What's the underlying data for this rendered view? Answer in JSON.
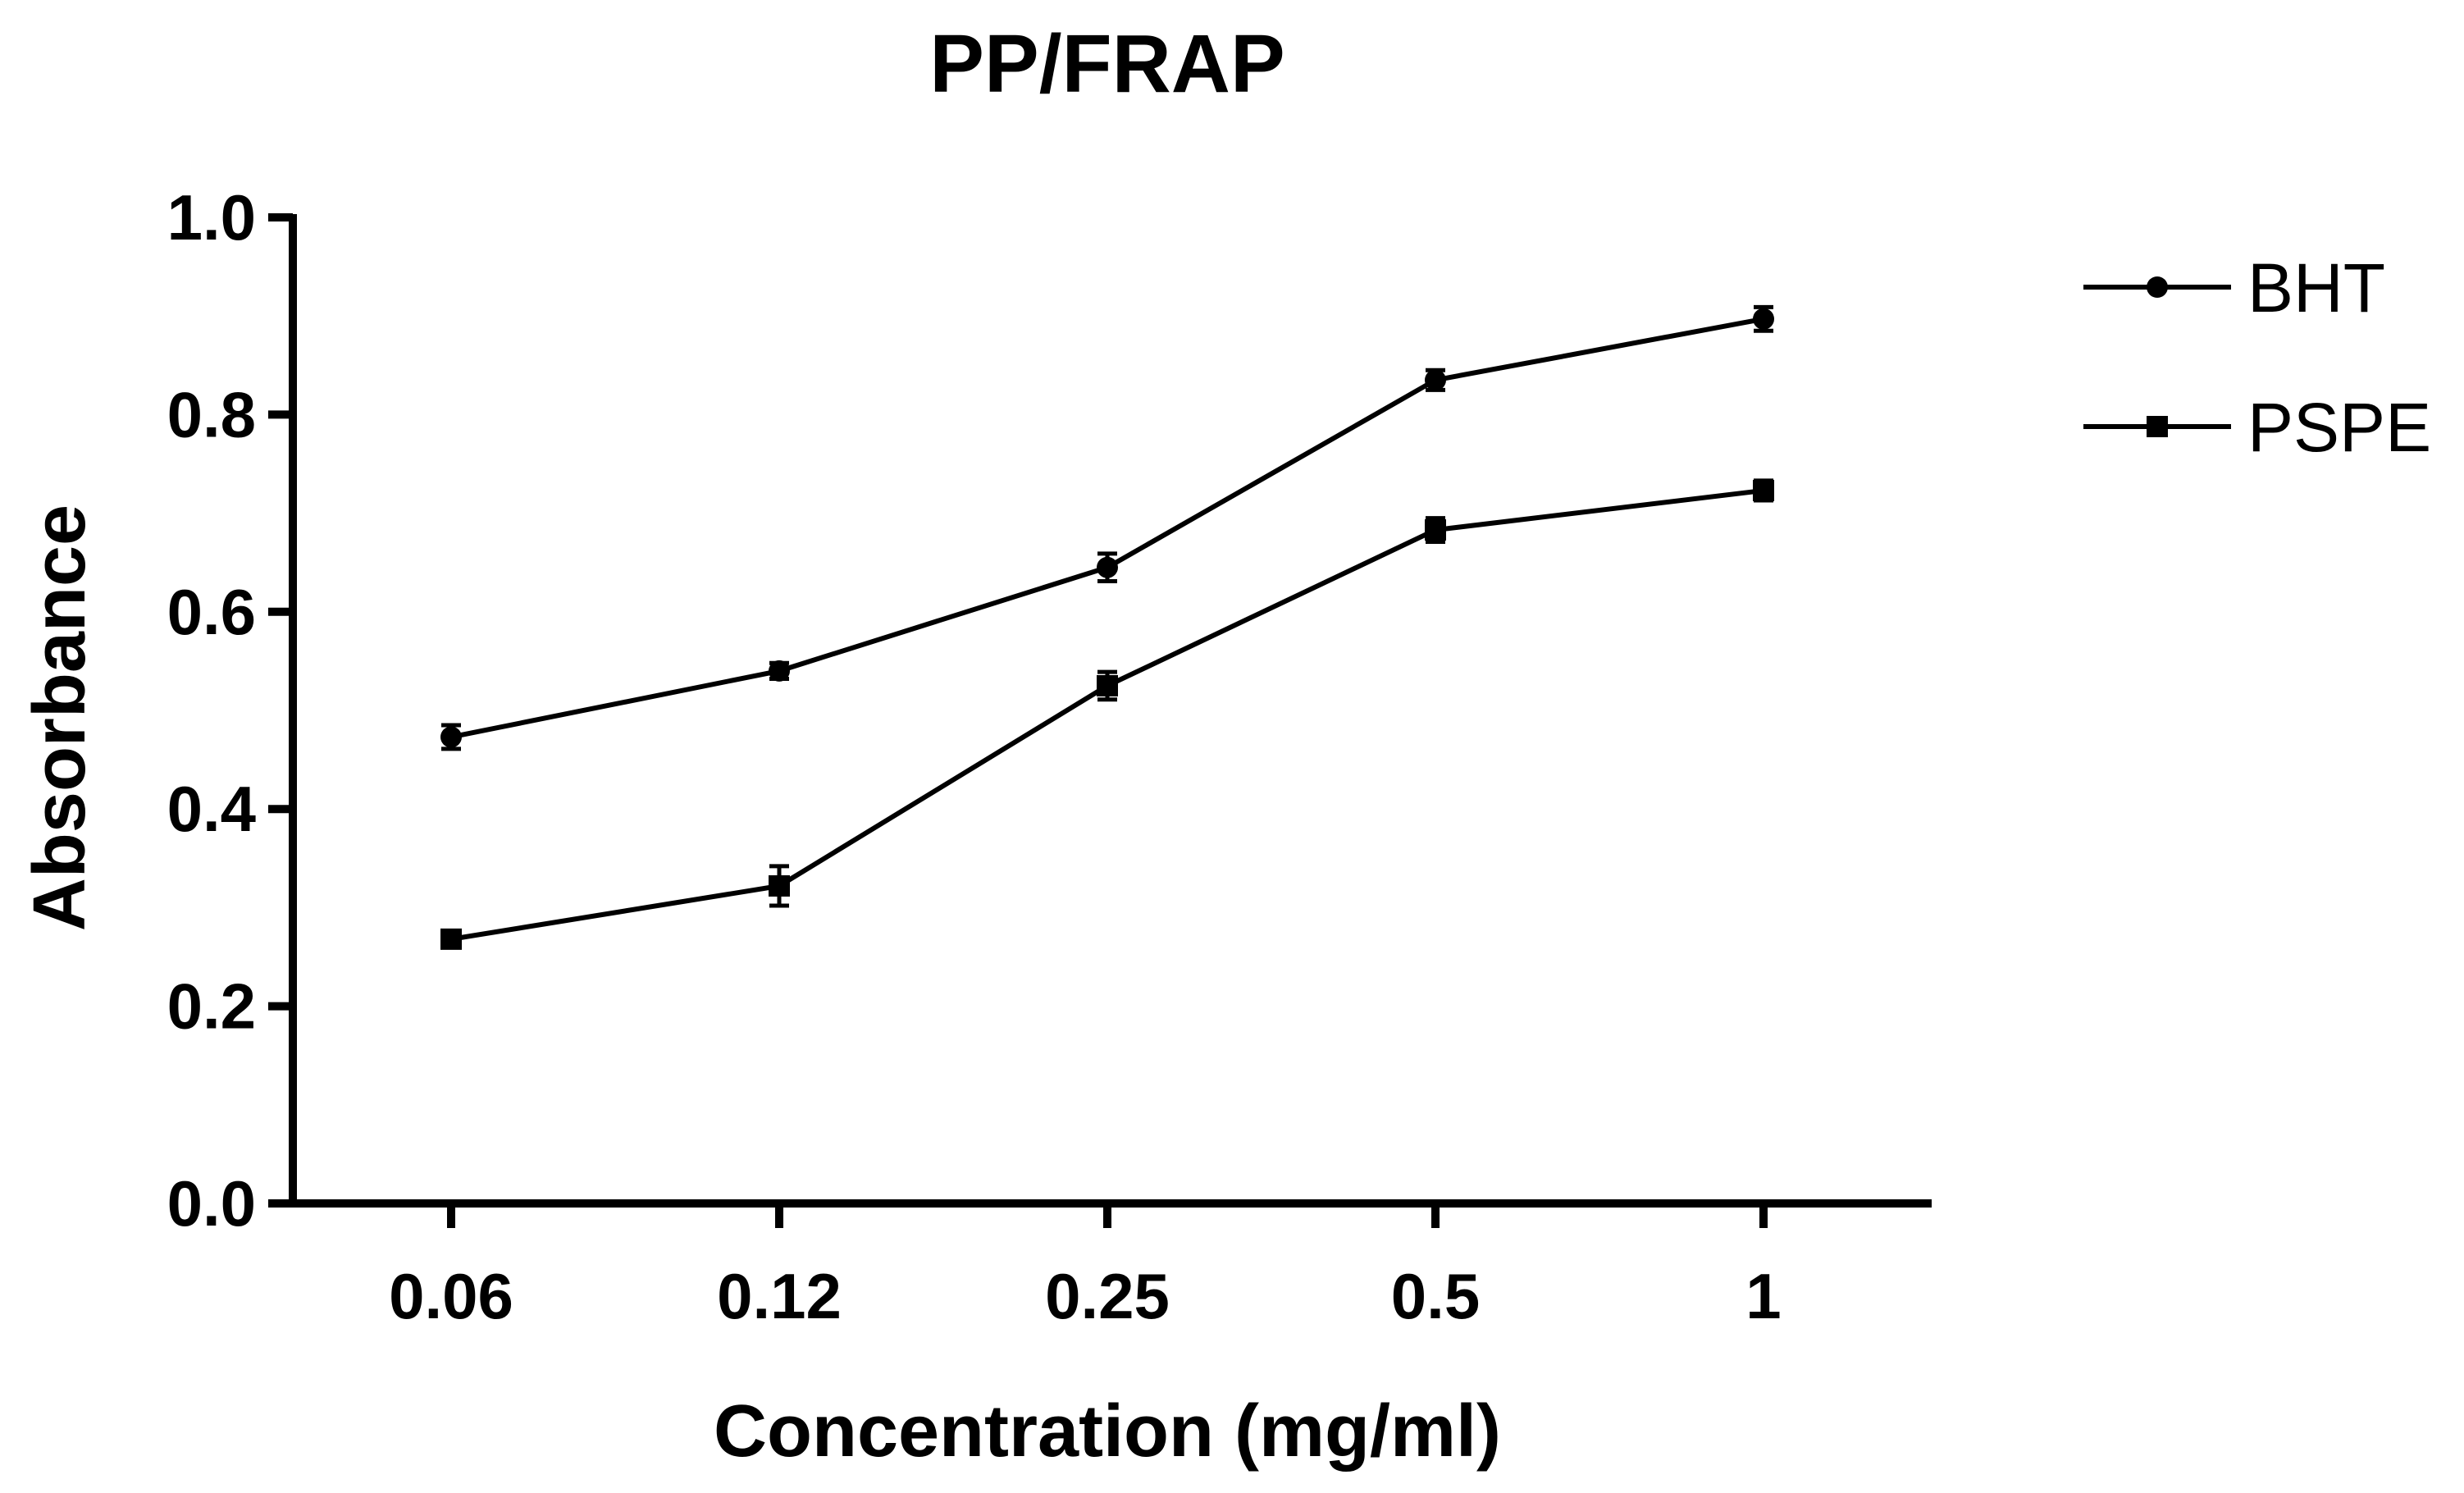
{
  "chart_data": {
    "type": "line",
    "title": "PP/FRAP",
    "xlabel": "Concentration (mg/ml)",
    "ylabel": "Absorbance",
    "categories": [
      "0.06",
      "0.12",
      "0.25",
      "0.5",
      "1"
    ],
    "ylim": [
      0,
      1.0
    ],
    "yticks": [
      "0.0",
      "0.2",
      "0.4",
      "0.6",
      "0.8",
      "1.0"
    ],
    "grid": false,
    "legend_position": "top-right",
    "series": [
      {
        "name": "BHT",
        "marker": "circle",
        "values": [
          0.473,
          0.54,
          0.645,
          0.835,
          0.897
        ],
        "errors": [
          0.012,
          0.008,
          0.014,
          0.01,
          0.012
        ]
      },
      {
        "name": "PSPE",
        "marker": "square",
        "values": [
          0.268,
          0.322,
          0.525,
          0.683,
          0.723
        ],
        "errors": [
          0.006,
          0.02,
          0.014,
          0.012,
          0.01
        ]
      }
    ]
  }
}
